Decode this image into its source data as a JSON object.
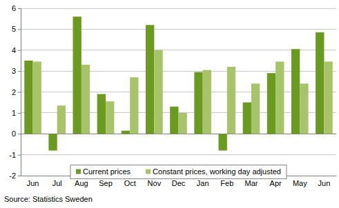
{
  "chart_data": {
    "type": "bar",
    "categories": [
      "Jun",
      "Jul",
      "Aug",
      "Sep",
      "Oct",
      "Nov",
      "Dec",
      "Jan",
      "Feb",
      "Mar",
      "Apr",
      "May",
      "Jun"
    ],
    "series": [
      {
        "name": "Current prices",
        "color": "#6a9a1f",
        "values": [
          3.5,
          -0.8,
          5.6,
          1.9,
          0.15,
          5.2,
          1.3,
          2.95,
          -0.8,
          1.5,
          2.9,
          4.05,
          4.85
        ]
      },
      {
        "name": "Constant prices, working day adjusted",
        "color": "#a8c46a",
        "values": [
          3.45,
          1.35,
          3.3,
          1.55,
          2.7,
          4.0,
          1.0,
          3.05,
          3.2,
          2.4,
          3.45,
          2.4,
          3.45
        ]
      }
    ],
    "ylim": [
      -2,
      6
    ],
    "yticks": [
      -2,
      -1,
      0,
      1,
      2,
      3,
      4,
      5,
      6
    ],
    "grid": true,
    "legend": "bottom",
    "source": "Source: Statistics Sweden"
  }
}
